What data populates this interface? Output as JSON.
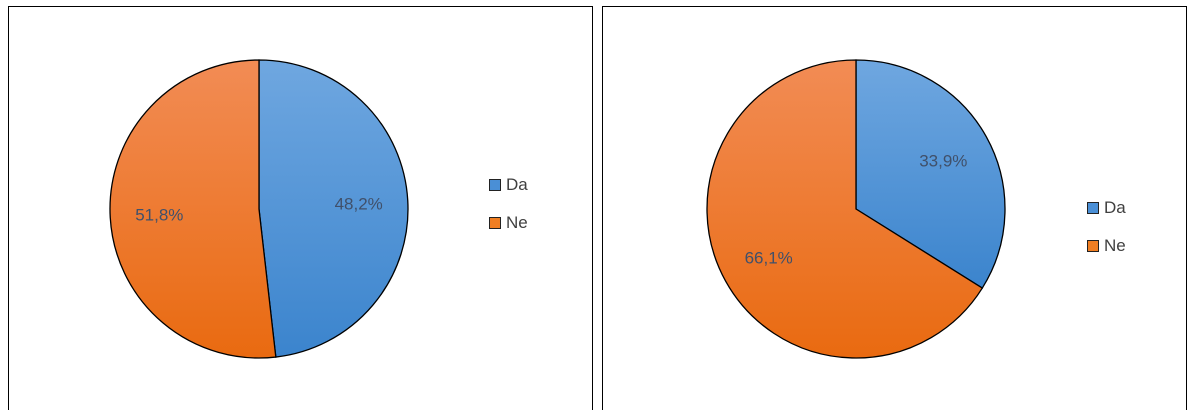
{
  "chart_data": [
    {
      "type": "pie",
      "categories": [
        "Da",
        "Ne"
      ],
      "values": [
        48.2,
        51.8
      ],
      "data_labels": [
        "48,2%",
        "51,8%"
      ],
      "colors": [
        "#4a8fd6",
        "#f07e22"
      ],
      "legend": "right",
      "legend_entries": [
        "Da",
        "Ne"
      ]
    },
    {
      "type": "pie",
      "categories": [
        "Da",
        "Ne"
      ],
      "values": [
        33.9,
        66.1
      ],
      "data_labels": [
        "33,9%",
        "66,1%"
      ],
      "colors": [
        "#4a8fd6",
        "#f07e22"
      ],
      "legend": "right",
      "legend_entries": [
        "Da",
        "Ne"
      ]
    }
  ]
}
